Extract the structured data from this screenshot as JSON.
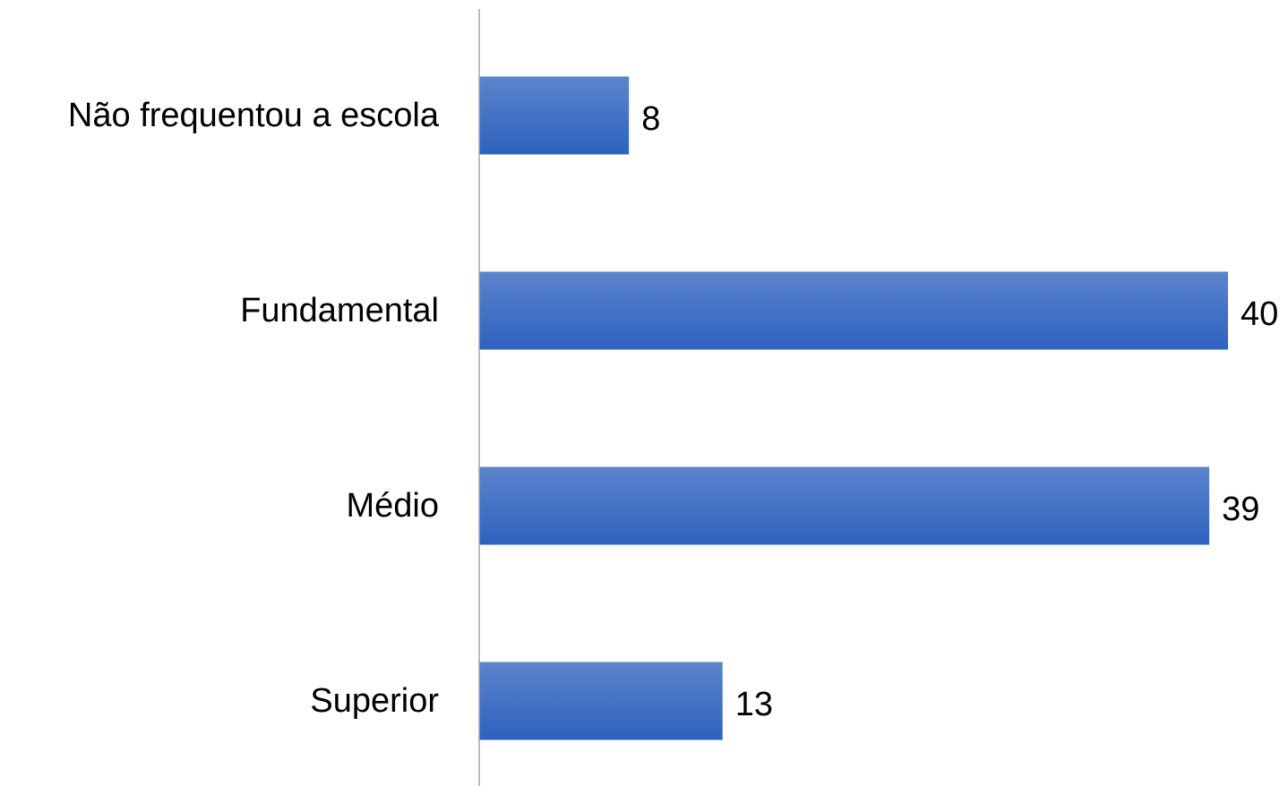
{
  "chart_data": {
    "type": "bar",
    "orientation": "horizontal",
    "title": "",
    "xlabel": "",
    "ylabel": "",
    "categories": [
      "Não frequentou a escola",
      "Fundamental",
      "Médio",
      "Superior"
    ],
    "values": [
      8,
      40,
      39,
      13
    ],
    "xlim": [
      0,
      40
    ],
    "grid": false,
    "legend": "none",
    "data_labels": true,
    "colors": {
      "bar_top": "#5b84cc",
      "bar_bottom": "#2e62bd",
      "axis": "#a6a6a6",
      "text": "#000000"
    }
  }
}
